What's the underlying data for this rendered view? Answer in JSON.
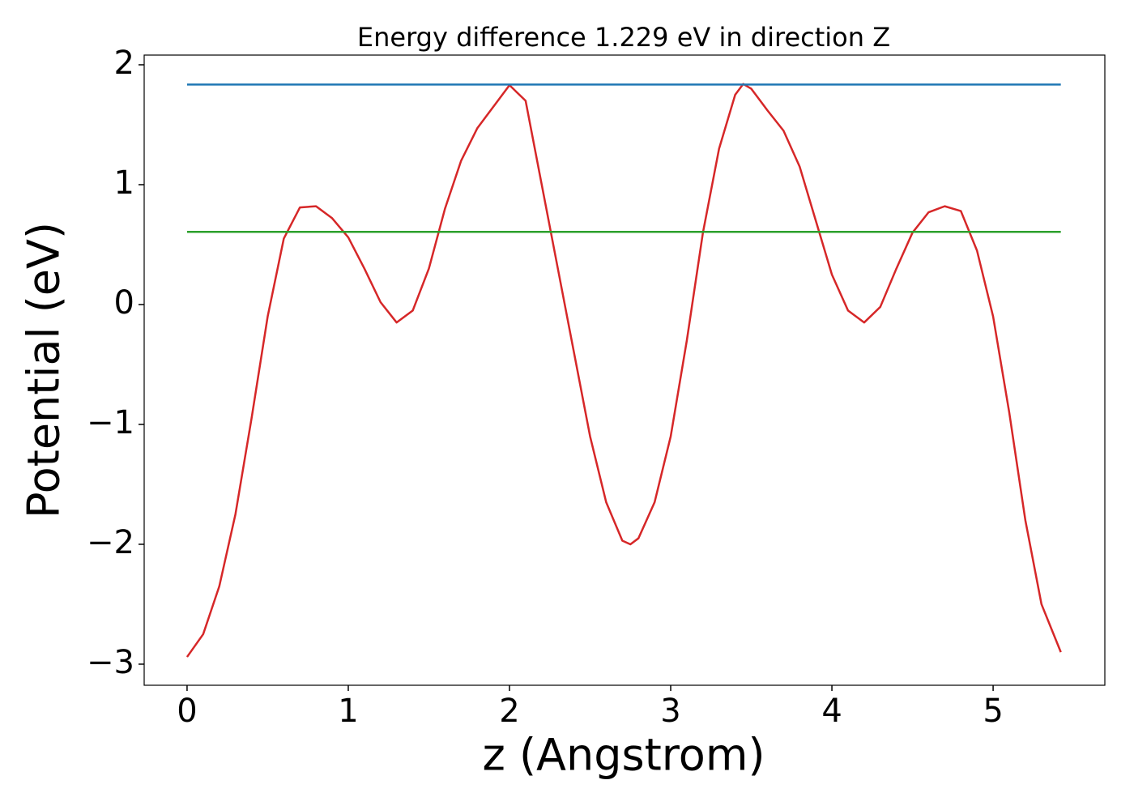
{
  "chart_data": {
    "type": "line",
    "title": "Energy difference 1.229 eV in direction Z",
    "x_label": "z (Angstrom)",
    "y_label": "Potential (eV)",
    "xlim": [
      -0.266,
      5.693
    ],
    "ylim": [
      -3.176,
      2.081
    ],
    "xticks": [
      0,
      1,
      2,
      3,
      4,
      5
    ],
    "yticks": [
      {
        "value": -3,
        "label": "−3"
      },
      {
        "value": -2,
        "label": "−2"
      },
      {
        "value": -1,
        "label": "−1"
      },
      0,
      1,
      2
    ],
    "series": [
      {
        "color": "#d62728",
        "x": [
          0,
          0.1,
          0.2,
          0.3,
          0.4,
          0.5,
          0.6,
          0.7,
          0.8,
          0.9,
          1.0,
          1.1,
          1.2,
          1.3,
          1.4,
          1.5,
          1.6,
          1.7,
          1.8,
          1.9,
          2.0,
          2.1,
          2.2,
          2.3,
          2.4,
          2.5,
          2.6,
          2.7,
          2.75,
          2.8,
          2.9,
          3.0,
          3.1,
          3.2,
          3.3,
          3.4,
          3.45,
          3.5,
          3.6,
          3.7,
          3.8,
          3.9,
          4.0,
          4.1,
          4.2,
          4.3,
          4.4,
          4.5,
          4.6,
          4.7,
          4.8,
          4.9,
          5.0,
          5.1,
          5.2,
          5.3,
          5.42
        ],
        "values": [
          -2.94,
          -2.75,
          -2.35,
          -1.75,
          -0.95,
          -0.1,
          0.55,
          0.81,
          0.82,
          0.72,
          0.56,
          0.3,
          0.02,
          -0.15,
          -0.05,
          0.3,
          0.8,
          1.2,
          1.47,
          1.65,
          1.83,
          1.7,
          1.0,
          0.3,
          -0.4,
          -1.1,
          -1.65,
          -1.97,
          -2.0,
          -1.95,
          -1.65,
          -1.1,
          -0.3,
          0.6,
          1.3,
          1.75,
          1.84,
          1.8,
          1.62,
          1.45,
          1.15,
          0.7,
          0.25,
          -0.05,
          -0.15,
          -0.02,
          0.3,
          0.6,
          0.77,
          0.82,
          0.78,
          0.45,
          -0.1,
          -0.9,
          -1.8,
          -2.5,
          -2.9
        ]
      },
      {
        "color": "#1f77b4",
        "x": [
          0,
          5.42
        ],
        "values": [
          1.835,
          1.835
        ]
      },
      {
        "color": "#2ca02c",
        "x": [
          0,
          5.42
        ],
        "values": [
          0.606,
          0.606
        ]
      }
    ]
  }
}
